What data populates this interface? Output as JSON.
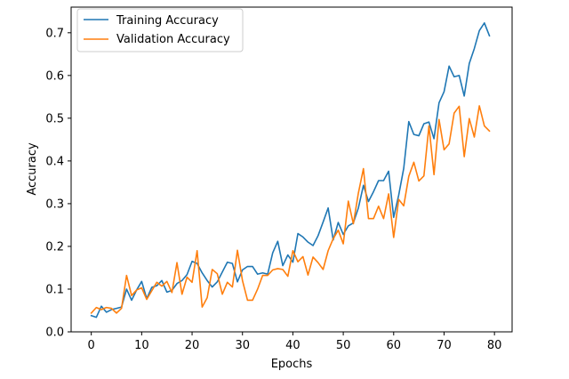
{
  "chart_data": {
    "type": "line",
    "title": "",
    "xlabel": "Epochs",
    "ylabel": "Accuracy",
    "xlim": [
      -4,
      83.5
    ],
    "ylim": [
      0.0,
      0.76
    ],
    "xticks": [
      0,
      10,
      20,
      30,
      40,
      50,
      60,
      70,
      80
    ],
    "yticks": [
      0.0,
      0.1,
      0.2,
      0.3,
      0.4,
      0.5,
      0.6,
      0.7
    ],
    "xtick_labels": [
      "0",
      "10",
      "20",
      "30",
      "40",
      "50",
      "60",
      "70",
      "80"
    ],
    "ytick_labels": [
      "0.0",
      "0.1",
      "0.2",
      "0.3",
      "0.4",
      "0.5",
      "0.6",
      "0.7"
    ],
    "grid": false,
    "legend_position": "top-left",
    "x": [
      0,
      1,
      2,
      3,
      4,
      5,
      6,
      7,
      8,
      9,
      10,
      11,
      12,
      13,
      14,
      15,
      16,
      17,
      18,
      19,
      20,
      21,
      22,
      23,
      24,
      25,
      26,
      27,
      28,
      29,
      30,
      31,
      32,
      33,
      34,
      35,
      36,
      37,
      38,
      39,
      40,
      41,
      42,
      43,
      44,
      45,
      46,
      47,
      48,
      49,
      50,
      51,
      52,
      53,
      54,
      55,
      56,
      57,
      58,
      59,
      60,
      61,
      62,
      63,
      64,
      65,
      66,
      67,
      68,
      69,
      70,
      71,
      72,
      73,
      74,
      75,
      76,
      77,
      78,
      79
    ],
    "series": [
      {
        "name": "Training Accuracy",
        "color": "#1f77b4",
        "values": [
          0.038,
          0.034,
          0.06,
          0.046,
          0.052,
          0.055,
          0.058,
          0.1,
          0.074,
          0.098,
          0.118,
          0.078,
          0.104,
          0.108,
          0.12,
          0.093,
          0.097,
          0.113,
          0.12,
          0.134,
          0.165,
          0.16,
          0.138,
          0.12,
          0.105,
          0.117,
          0.14,
          0.163,
          0.16,
          0.117,
          0.145,
          0.153,
          0.153,
          0.135,
          0.138,
          0.135,
          0.185,
          0.212,
          0.155,
          0.18,
          0.163,
          0.23,
          0.222,
          0.21,
          0.202,
          0.225,
          0.257,
          0.29,
          0.215,
          0.256,
          0.228,
          0.248,
          0.255,
          0.29,
          0.343,
          0.305,
          0.328,
          0.354,
          0.354,
          0.376,
          0.268,
          0.32,
          0.383,
          0.492,
          0.462,
          0.459,
          0.487,
          0.491,
          0.452,
          0.536,
          0.562,
          0.622,
          0.597,
          0.6,
          0.552,
          0.628,
          0.663,
          0.705,
          0.723,
          0.693
        ]
      },
      {
        "name": "Validation Accuracy",
        "color": "#ff7f0e",
        "values": [
          0.044,
          0.057,
          0.052,
          0.057,
          0.055,
          0.044,
          0.055,
          0.132,
          0.085,
          0.098,
          0.103,
          0.076,
          0.096,
          0.116,
          0.107,
          0.118,
          0.092,
          0.162,
          0.088,
          0.128,
          0.116,
          0.19,
          0.058,
          0.08,
          0.146,
          0.136,
          0.088,
          0.116,
          0.105,
          0.191,
          0.12,
          0.074,
          0.074,
          0.1,
          0.132,
          0.132,
          0.145,
          0.148,
          0.146,
          0.13,
          0.19,
          0.164,
          0.176,
          0.133,
          0.175,
          0.162,
          0.146,
          0.19,
          0.218,
          0.238,
          0.206,
          0.306,
          0.253,
          0.325,
          0.382,
          0.265,
          0.265,
          0.294,
          0.265,
          0.323,
          0.221,
          0.31,
          0.295,
          0.364,
          0.397,
          0.353,
          0.365,
          0.482,
          0.368,
          0.497,
          0.426,
          0.44,
          0.512,
          0.528,
          0.41,
          0.499,
          0.456,
          0.529,
          0.482,
          0.47
        ]
      }
    ]
  }
}
